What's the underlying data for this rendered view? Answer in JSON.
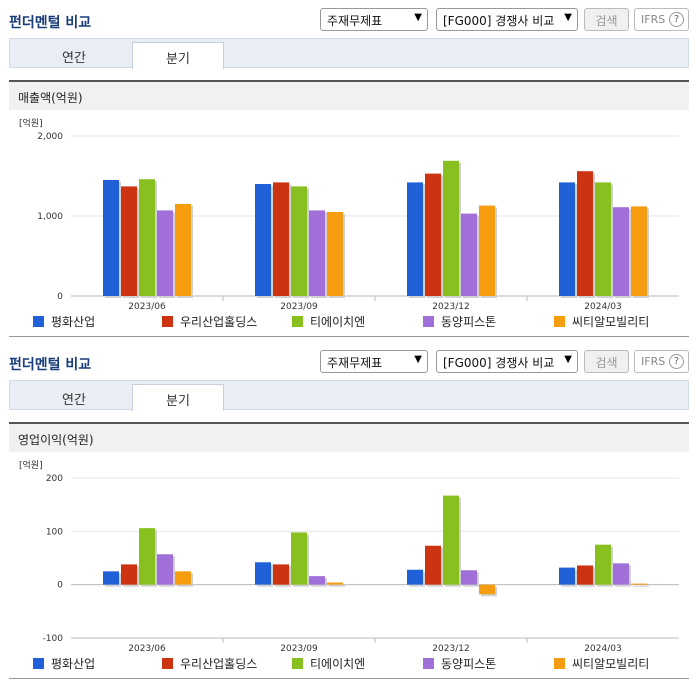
{
  "panels": [
    {
      "header": {
        "title": "펀더멘털 비교",
        "statement_select": "주재무제표",
        "compare_select": "[FG000] 경쟁사 비교",
        "search_button": "검색",
        "ifrs_label": "IFRS",
        "help_label": "?"
      },
      "tabs": [
        {
          "label": "연간"
        },
        {
          "label": "분기"
        }
      ],
      "active_tab": "분기",
      "subtitle": "매출액(억원)"
    },
    {
      "header": {
        "title": "펀더멘털 비교",
        "statement_select": "주재무제표",
        "compare_select": "[FG000] 경쟁사 비교",
        "search_button": "검색",
        "ifrs_label": "IFRS",
        "help_label": "?"
      },
      "tabs": [
        {
          "label": "연간"
        },
        {
          "label": "분기"
        }
      ],
      "active_tab": "분기",
      "subtitle": "영업이익(억원)"
    }
  ],
  "chart_data": [
    {
      "type": "bar",
      "unit_label": "[억원]",
      "categories": [
        "2023/06",
        "2023/09",
        "2023/12",
        "2024/03"
      ],
      "ylim": [
        0,
        2000
      ],
      "yticks": [
        0,
        1000,
        2000
      ],
      "ytick_labels": [
        "0",
        "1,000",
        "2,000"
      ],
      "series": [
        {
          "name": "평화산업",
          "color": "#2060d8",
          "values": [
            1450,
            1400,
            1420,
            1420
          ]
        },
        {
          "name": "우리산업홀딩스",
          "color": "#cc3311",
          "values": [
            1370,
            1420,
            1530,
            1560
          ]
        },
        {
          "name": "티에이치엔",
          "color": "#88c020",
          "values": [
            1460,
            1370,
            1690,
            1420
          ]
        },
        {
          "name": "동양피스톤",
          "color": "#a070d8",
          "values": [
            1070,
            1070,
            1030,
            1110
          ]
        },
        {
          "name": "씨티알모빌리티",
          "color": "#f59c10",
          "values": [
            1150,
            1050,
            1130,
            1120
          ]
        }
      ],
      "legend": "bottom"
    },
    {
      "type": "bar",
      "unit_label": "[억원]",
      "categories": [
        "2023/06",
        "2023/09",
        "2023/12",
        "2024/03"
      ],
      "ylim": [
        -100,
        200
      ],
      "yticks": [
        -100,
        0,
        100,
        200
      ],
      "ytick_labels": [
        "-100",
        "0",
        "100",
        "200"
      ],
      "series": [
        {
          "name": "평화산업",
          "color": "#2060d8",
          "values": [
            25,
            42,
            28,
            32
          ]
        },
        {
          "name": "우리산업홀딩스",
          "color": "#cc3311",
          "values": [
            38,
            38,
            73,
            36
          ]
        },
        {
          "name": "티에이치엔",
          "color": "#88c020",
          "values": [
            106,
            98,
            167,
            75
          ]
        },
        {
          "name": "동양피스톤",
          "color": "#a070d8",
          "values": [
            57,
            16,
            27,
            40
          ]
        },
        {
          "name": "씨티알모빌리티",
          "color": "#f59c10",
          "values": [
            25,
            4,
            -18,
            2
          ]
        }
      ],
      "legend": "bottom"
    }
  ]
}
